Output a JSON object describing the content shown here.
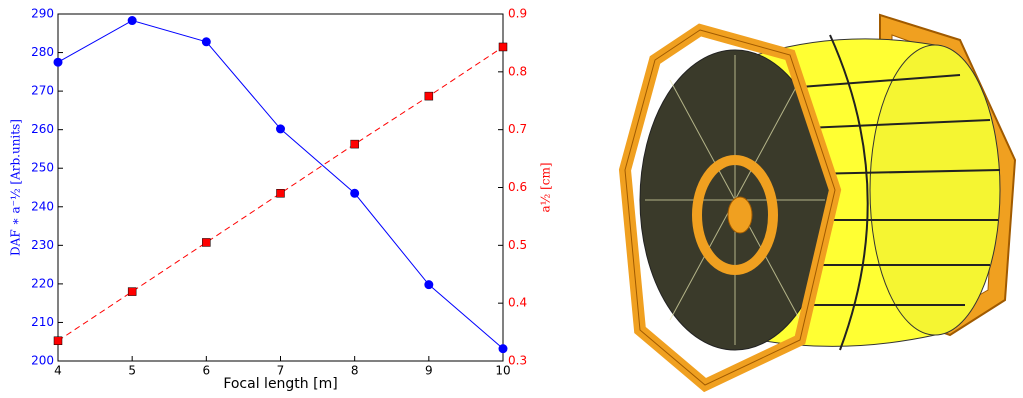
{
  "chart_data": {
    "type": "line",
    "xlabel": "Focal length [m]",
    "ylabel": "DAF ∗ a⁻½ [Arb.units]",
    "y2label": "a½ [cm]",
    "x": [
      4,
      5,
      6,
      7,
      8,
      9,
      10
    ],
    "xlim": [
      4,
      10
    ],
    "xticks": [
      4,
      5,
      6,
      7,
      8,
      9,
      10
    ],
    "ylim": [
      200,
      290
    ],
    "yticks": [
      200,
      210,
      220,
      230,
      240,
      250,
      260,
      270,
      280,
      290
    ],
    "y2lim": [
      0.3,
      0.9
    ],
    "y2ticks": [
      0.3,
      0.4,
      0.5,
      0.6,
      0.7,
      0.8,
      0.9
    ],
    "series": [
      {
        "name": "DAF",
        "color": "#0000ff",
        "marker": "circle",
        "line_style": "solid",
        "values": [
          277.5,
          288.3,
          282.8,
          260.2,
          243.5,
          219.8,
          203.2
        ]
      },
      {
        "name": "a",
        "color": "#ff0000",
        "marker": "square",
        "line_style": "dashed",
        "axis": "y2",
        "values": [
          0.335,
          0.42,
          0.505,
          0.59,
          0.675,
          0.758,
          0.843
        ]
      }
    ]
  }
}
